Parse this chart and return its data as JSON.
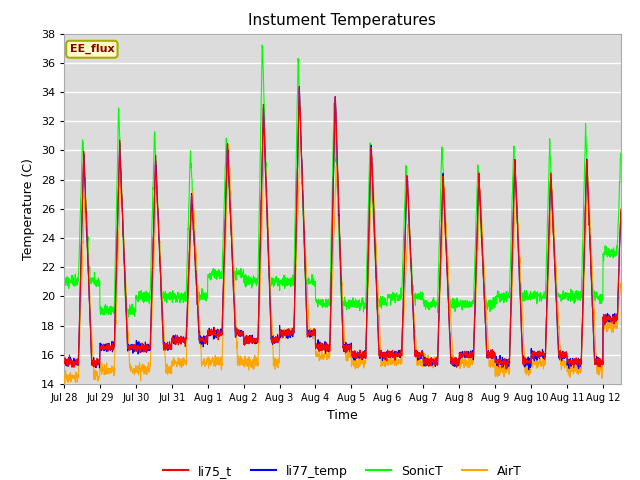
{
  "title": "Instument Temperatures",
  "xlabel": "Time",
  "ylabel": "Temperature (C)",
  "ylim": [
    14,
    38
  ],
  "yticks": [
    14,
    16,
    18,
    20,
    22,
    24,
    26,
    28,
    30,
    32,
    34,
    36,
    38
  ],
  "xtick_labels": [
    "Jul 28",
    "Jul 29",
    "Jul 30",
    "Jul 31",
    "Aug 1",
    "Aug 2",
    "Aug 3",
    "Aug 4",
    "Aug 5",
    "Aug 6",
    "Aug 7",
    "Aug 8",
    "Aug 9",
    "Aug 10",
    "Aug 11",
    "Aug 12"
  ],
  "annotation_text": "EE_flux",
  "annotation_color": "#8B0000",
  "annotation_bg": "#FFFFCC",
  "colors": {
    "li75_t": "#FF0000",
    "li77_temp": "#0000FF",
    "SonicT": "#00FF00",
    "AirT": "#FFA500"
  },
  "bg_color": "#DCDCDC",
  "grid_color": "#FFFFFF",
  "n_days": 15.5,
  "points_per_day": 144,
  "figsize": [
    6.4,
    4.8
  ],
  "dpi": 100
}
